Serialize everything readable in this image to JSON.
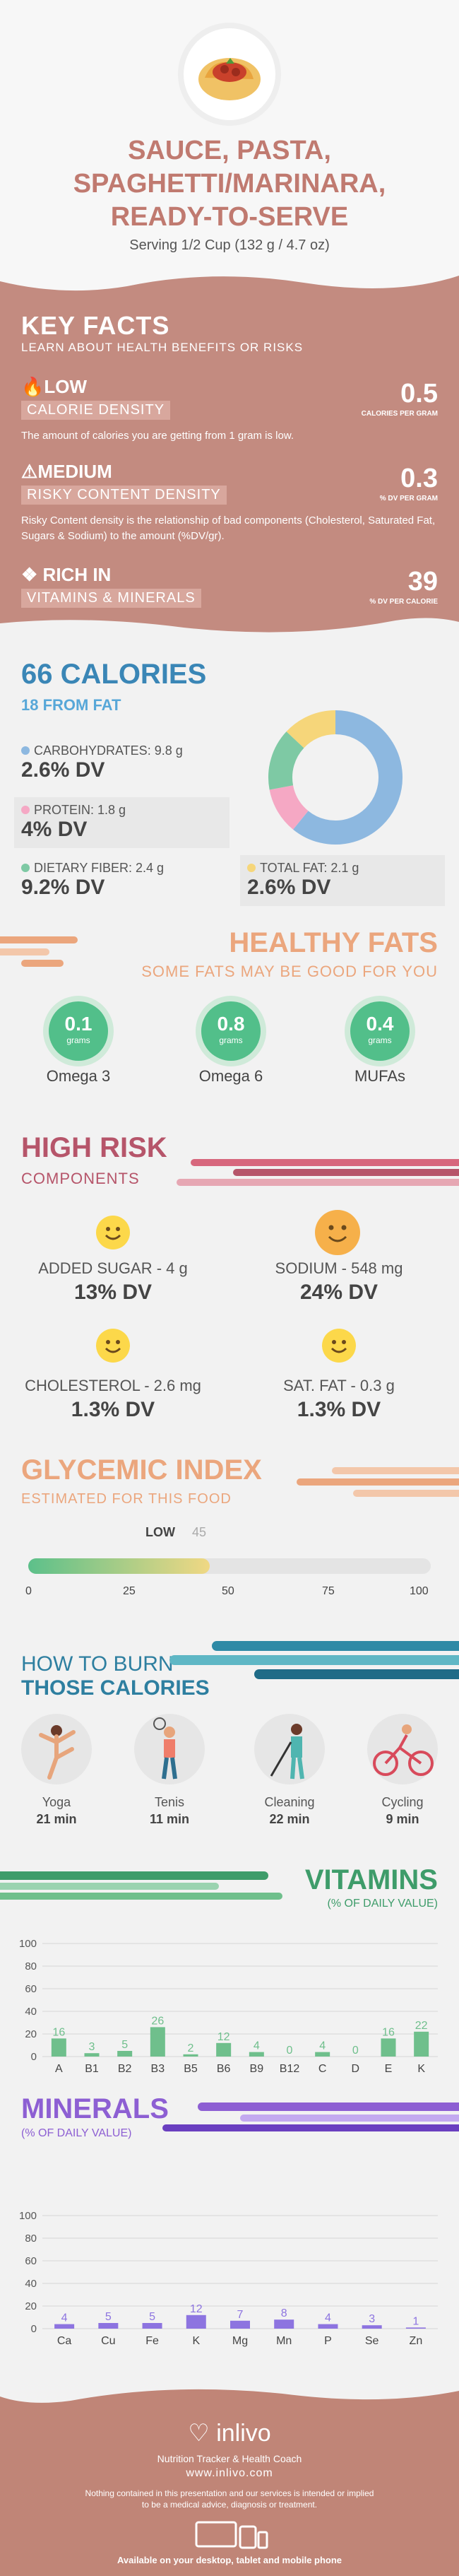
{
  "header": {
    "title_lines": [
      "SAUCE, PASTA,",
      "SPAGHETTI/MARINARA,",
      "READY-TO-SERVE"
    ],
    "serving": "Serving 1/2 Cup (132 g / 4.7 oz)"
  },
  "key_facts": {
    "heading": "KEY FACTS",
    "subheading": "LEARN ABOUT HEALTH BENEFITS OR RISKS",
    "calorie": {
      "level": "LOW",
      "label": "CALORIE DENSITY",
      "value": "0.5",
      "unit": "CALORIES PER GRAM",
      "desc": "The amount of calories you are getting from 1 gram is low."
    },
    "risky": {
      "level": "MEDIUM",
      "label": "RISKY CONTENT DENSITY",
      "value": "0.3",
      "unit": "% DV PER GRAM",
      "desc": "Risky Content density is the relationship of bad components (Cholesterol, Saturated Fat, Sugars & Sodium) to the amount (%DV/gr)."
    },
    "rich": {
      "level": "RICH  IN",
      "label": "VITAMINS & MINERALS",
      "value": "39",
      "unit": "% DV PER CALORIE"
    }
  },
  "calories": {
    "heading": "66 CALORIES",
    "from_fat": "18 FROM FAT",
    "nutrients": [
      {
        "label": "CARBOHYDRATES: 9.8 g",
        "dv": "2.6% DV",
        "color": "#8db8e0"
      },
      {
        "label": "PROTEIN: 1.8 g",
        "dv": "4% DV",
        "color": "#f5a8c4"
      },
      {
        "label": "DIETARY FIBER: 2.4 g",
        "dv": "9.2% DV",
        "color": "#7ec9a4"
      },
      {
        "label": "TOTAL FAT: 2.1 g",
        "dv": "2.6% DV",
        "color": "#f6d67a"
      }
    ],
    "donut": [
      {
        "name": "carbohydrates",
        "value": 9.8,
        "color": "#8db8e0"
      },
      {
        "name": "protein",
        "value": 1.8,
        "color": "#f5a8c4"
      },
      {
        "name": "fiber",
        "value": 2.4,
        "color": "#7ec9a4"
      },
      {
        "name": "fat",
        "value": 2.1,
        "color": "#f6d67a"
      }
    ]
  },
  "healthy_fats": {
    "heading": "HEALTHY FATS",
    "subheading": "SOME FATS MAY BE GOOD FOR YOU",
    "items": [
      {
        "value": "0.1",
        "unit": "grams",
        "name": "Omega 3"
      },
      {
        "value": "0.8",
        "unit": "grams",
        "name": "Omega 6"
      },
      {
        "value": "0.4",
        "unit": "grams",
        "name": "MUFAs"
      }
    ]
  },
  "high_risk": {
    "heading": "HIGH RISK",
    "subheading": "COMPONENTS",
    "items": [
      {
        "label": "ADDED SUGAR - 4 g",
        "dv": "13% DV"
      },
      {
        "label": "SODIUM - 548 mg",
        "dv": "24% DV"
      },
      {
        "label": "CHOLESTEROL - 2.6 mg",
        "dv": "1.3% DV"
      },
      {
        "label": "SAT. FAT - 0.3 g",
        "dv": "1.3% DV"
      }
    ]
  },
  "glycemic": {
    "heading": "GLYCEMIC INDEX",
    "subheading": "ESTIMATED FOR THIS FOOD",
    "level": "LOW",
    "value": 45,
    "value_label": "45",
    "ticks": [
      "0",
      "25",
      "50",
      "75",
      "100"
    ],
    "bar_color": "#5cc08a"
  },
  "burn": {
    "heading_1": "HOW TO BURN",
    "heading_2": "THOSE CALORIES",
    "activities": [
      {
        "name": "Yoga",
        "time": "21 min",
        "icon": "yoga-icon"
      },
      {
        "name": "Tenis",
        "time": "11 min",
        "icon": "tennis-icon"
      },
      {
        "name": "Cleaning",
        "time": "22 min",
        "icon": "cleaning-icon"
      },
      {
        "name": "Cycling",
        "time": "9 min",
        "icon": "cycling-icon"
      }
    ]
  },
  "vitamins": {
    "heading": "VITAMINS",
    "subheading": "(% OF DAILY VALUE)"
  },
  "minerals": {
    "heading": "MINERALS",
    "subheading": "(% OF DAILY VALUE)"
  },
  "chart_data": [
    {
      "type": "bar",
      "title": "VITAMINS",
      "categories": [
        "A",
        "B1",
        "B2",
        "B3",
        "B5",
        "B6",
        "B9",
        "B12",
        "C",
        "D",
        "E",
        "K"
      ],
      "values": [
        16,
        3,
        5,
        26,
        2,
        12,
        4,
        0,
        4,
        0,
        16,
        22
      ],
      "ylim": [
        0,
        100
      ],
      "yticks": [
        0,
        20,
        40,
        60,
        80,
        100
      ],
      "color": "#6fbf8c",
      "grid": true
    },
    {
      "type": "bar",
      "title": "MINERALS",
      "categories": [
        "Ca",
        "Cu",
        "Fe",
        "K",
        "Mg",
        "Mn",
        "P",
        "Se",
        "Zn"
      ],
      "values": [
        4,
        5,
        5,
        12,
        7,
        8,
        4,
        3,
        1
      ],
      "ylim": [
        0,
        100
      ],
      "yticks": [
        0,
        20,
        40,
        60,
        80,
        100
      ],
      "color": "#8d74e0",
      "grid": true
    }
  ],
  "footer": {
    "brand": "inlivo",
    "tagline": "Nutrition Tracker & Health Coach",
    "url": "www.inlivo.com",
    "disclaimer_1": "Nothing contained in this presentation and our services is intended or implied",
    "disclaimer_2": "to be a medical advice, diagnosis or treatment.",
    "available": "Available on your desktop, tablet and mobile phone"
  }
}
